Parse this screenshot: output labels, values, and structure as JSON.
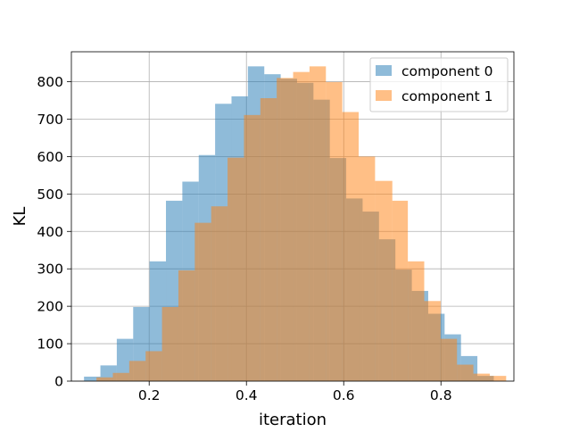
{
  "chart_data": {
    "type": "bar",
    "subtype": "overlapping-histogram",
    "title": "",
    "xlabel": "iteration",
    "ylabel": "KL",
    "xlim": [
      0.04,
      0.95
    ],
    "ylim": [
      0,
      880
    ],
    "xticks": [
      0.2,
      0.4,
      0.6,
      0.8
    ],
    "xtick_labels": [
      "0.2",
      "0.4",
      "0.6",
      "0.8"
    ],
    "yticks": [
      0,
      100,
      200,
      300,
      400,
      500,
      600,
      700,
      800
    ],
    "ytick_labels": [
      "0",
      "100",
      "200",
      "300",
      "400",
      "500",
      "600",
      "700",
      "800"
    ],
    "grid": true,
    "legend_position": "top-right",
    "series": [
      {
        "name": "component 0",
        "color": "#1f77b4",
        "opacity": 0.5,
        "bin_edges": [
          0.066,
          0.0997,
          0.1334,
          0.1671,
          0.2008,
          0.2345,
          0.2682,
          0.3019,
          0.3356,
          0.3693,
          0.403,
          0.4367,
          0.4704,
          0.5041,
          0.5378,
          0.5715,
          0.6052,
          0.6389,
          0.6726,
          0.7063,
          0.7401,
          0.7738,
          0.8075,
          0.8412,
          0.8749,
          0.9086
        ],
        "counts": [
          12,
          42,
          113,
          198,
          320,
          482,
          533,
          604,
          741,
          761,
          841,
          820,
          808,
          797,
          752,
          596,
          488,
          453,
          379,
          298,
          241,
          180,
          125,
          67,
          14
        ]
      },
      {
        "name": "component 1",
        "color": "#ff7f0e",
        "opacity": 0.5,
        "bin_edges": [
          0.0916,
          0.1253,
          0.159,
          0.1927,
          0.2264,
          0.2601,
          0.2938,
          0.3275,
          0.3612,
          0.3949,
          0.4286,
          0.4623,
          0.496,
          0.5297,
          0.5634,
          0.5971,
          0.6308,
          0.6645,
          0.7,
          0.7319,
          0.7656,
          0.7993,
          0.833,
          0.8667,
          0.9004,
          0.9341
        ],
        "counts": [
          10,
          22,
          54,
          80,
          198,
          296,
          423,
          467,
          597,
          711,
          756,
          810,
          826,
          841,
          799,
          719,
          600,
          535,
          482,
          320,
          214,
          113,
          44,
          20,
          14
        ]
      }
    ]
  }
}
